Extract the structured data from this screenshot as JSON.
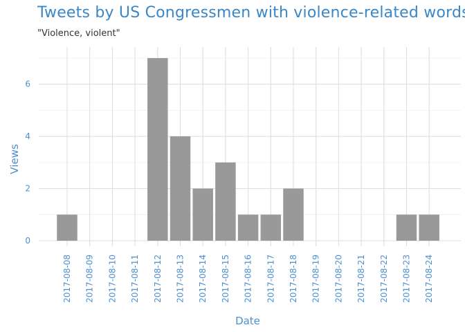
{
  "chart_data": {
    "type": "bar",
    "title": "Tweets by US Congressmen with violence-related words",
    "subtitle": "\"Violence, violent\"",
    "xlabel": "Date",
    "ylabel": "Views",
    "categories": [
      "2017-08-08",
      "2017-08-09",
      "2017-08-10",
      "2017-08-11",
      "2017-08-12",
      "2017-08-13",
      "2017-08-14",
      "2017-08-15",
      "2017-08-16",
      "2017-08-17",
      "2017-08-18",
      "2017-08-19",
      "2017-08-20",
      "2017-08-21",
      "2017-08-22",
      "2017-08-23",
      "2017-08-24"
    ],
    "values": [
      1,
      0,
      0,
      0,
      7,
      4,
      2,
      3,
      1,
      1,
      2,
      0,
      0,
      0,
      0,
      1,
      1
    ],
    "yticks": [
      0,
      2,
      4,
      6
    ],
    "ylim": [
      0,
      7.3
    ],
    "grid": true,
    "bar_color": "#999999",
    "accent_color": "#3a87c8"
  }
}
